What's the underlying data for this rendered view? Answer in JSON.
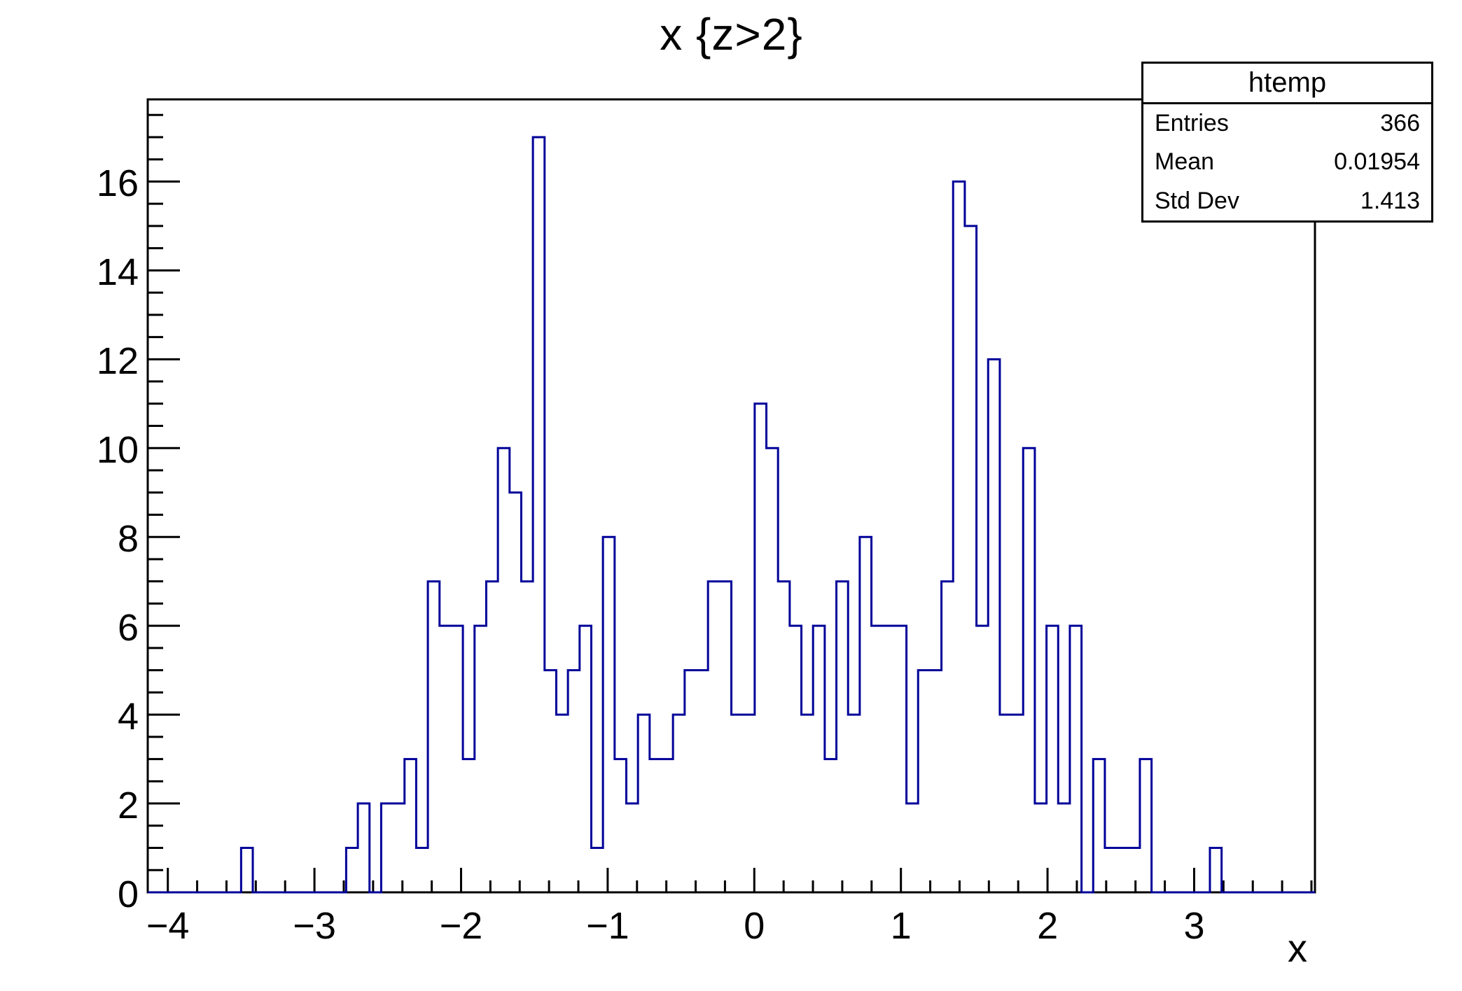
{
  "title": "x {z>2}",
  "stats_box": {
    "title": "htemp",
    "rows": [
      {
        "label": "Entries",
        "value": "366"
      },
      {
        "label": "Mean",
        "value": "0.01954"
      },
      {
        "label": "Std Dev",
        "value": "1.413"
      }
    ]
  },
  "axes": {
    "x_title": "x",
    "x_tick_values": [
      -4,
      -3,
      -2,
      -1,
      0,
      1,
      2,
      3
    ],
    "x_tick_labels": [
      "−4",
      "−3",
      "−2",
      "−1",
      "0",
      "1",
      "2",
      "3"
    ],
    "y_tick_values": [
      0,
      2,
      4,
      6,
      8,
      10,
      12,
      14,
      16
    ],
    "y_tick_labels": [
      "0",
      "2",
      "4",
      "6",
      "8",
      "10",
      "12",
      "14",
      "16"
    ]
  },
  "colors": {
    "hist_line": "#000099",
    "frame": "#000000",
    "text": "#000000",
    "background": "#ffffff"
  },
  "chart_data": {
    "type": "bar",
    "subtype": "root-histogram-step-outline",
    "title": "x {z>2}",
    "xlabel": "x",
    "ylabel": "",
    "histogram_name": "htemp",
    "entries": 366,
    "mean": 0.01954,
    "std_dev": 1.413,
    "n_bins": 100,
    "x_min": -4.137,
    "x_max": 3.824,
    "y_min": 0,
    "y_max": 17.85,
    "x_minor_tick_step": 0.2,
    "y_minor_tick_step": 0.5,
    "grid": false,
    "legend": false,
    "bin_contents": [
      0,
      0,
      0,
      0,
      0,
      0,
      0,
      0,
      1,
      0,
      0,
      0,
      0,
      0,
      0,
      0,
      0,
      1,
      2,
      0,
      2,
      2,
      3,
      1,
      7,
      6,
      6,
      3,
      6,
      7,
      10,
      9,
      7,
      17,
      5,
      4,
      5,
      6,
      1,
      8,
      3,
      2,
      4,
      3,
      3,
      4,
      5,
      5,
      7,
      7,
      4,
      4,
      11,
      10,
      7,
      6,
      4,
      6,
      3,
      7,
      4,
      8,
      6,
      6,
      6,
      2,
      5,
      5,
      7,
      16,
      15,
      6,
      12,
      4,
      4,
      10,
      2,
      6,
      2,
      6,
      0,
      3,
      1,
      1,
      1,
      3,
      0,
      0,
      0,
      0,
      0,
      1,
      0,
      0,
      0,
      0,
      0,
      0,
      0,
      0
    ]
  }
}
